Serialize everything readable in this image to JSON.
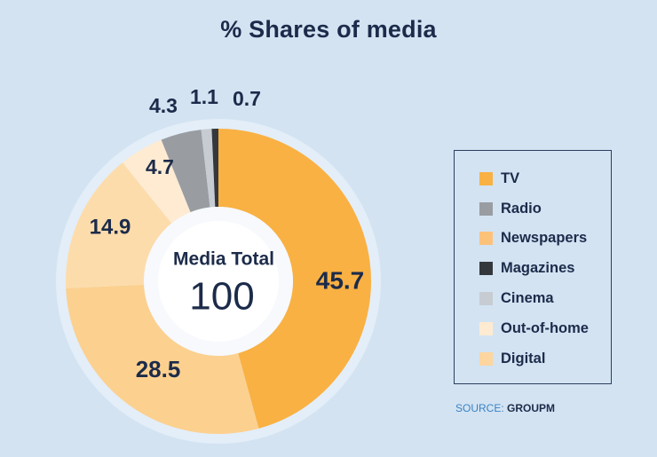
{
  "chart_data": {
    "type": "pie",
    "title": "% Shares of media",
    "center_label": "Media Total",
    "center_value": "100",
    "slices": [
      {
        "label": "TV",
        "value": 45.7,
        "value_text": "45.7",
        "color": "#f9b143"
      },
      {
        "label": "Digital",
        "value": 28.5,
        "value_text": "28.5",
        "color": "#fcd08f"
      },
      {
        "label": "Newspapers",
        "value": 14.9,
        "value_text": "14.9",
        "color": "#fddcab"
      },
      {
        "label": "Out-of-home",
        "value": 4.7,
        "value_text": "4.7",
        "color": "#feebd2"
      },
      {
        "label": "Radio",
        "value": 4.3,
        "value_text": "4.3",
        "color": "#999da2"
      },
      {
        "label": "Cinema",
        "value": 1.1,
        "value_text": "1.1",
        "color": "#c6ccd2"
      },
      {
        "label": "Magazines",
        "value": 0.7,
        "value_text": "0.7",
        "color": "#34383d"
      }
    ],
    "legend": {
      "placement": "right",
      "items": [
        {
          "label": "TV",
          "color": "#f9b143"
        },
        {
          "label": "Radio",
          "color": "#999da2"
        },
        {
          "label": "Newspapers",
          "color": "#fcc27a"
        },
        {
          "label": "Magazines",
          "color": "#34383d"
        },
        {
          "label": "Cinema",
          "color": "#c6ccd2"
        },
        {
          "label": "Out-of-home",
          "color": "#feebd2"
        },
        {
          "label": "Digital",
          "color": "#fdd59e"
        }
      ]
    },
    "source": {
      "prefix": "SOURCE: ",
      "name": "GROUPM"
    }
  }
}
